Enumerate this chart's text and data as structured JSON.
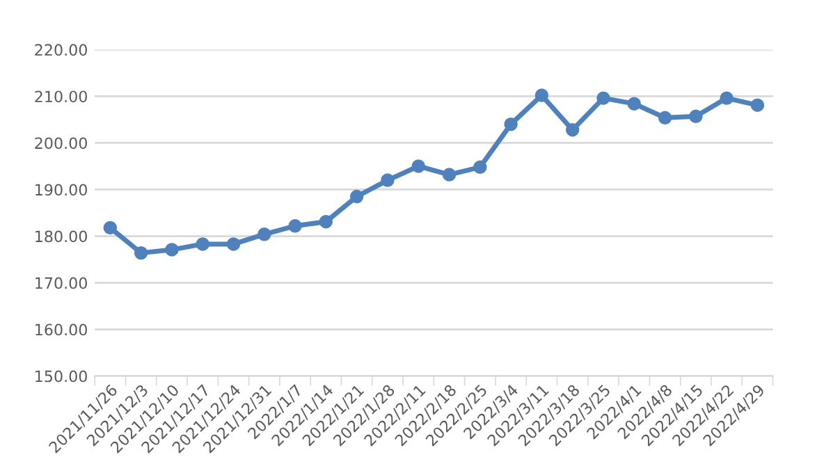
{
  "chart_data": {
    "type": "line",
    "categories": [
      "2021/11/26",
      "2021/12/3",
      "2021/12/10",
      "2021/12/17",
      "2021/12/24",
      "2021/12/31",
      "2022/1/7",
      "2022/1/14",
      "2022/1/21",
      "2022/1/28",
      "2022/2/11",
      "2022/2/18",
      "2022/2/25",
      "2022/3/4",
      "2022/3/11",
      "2022/3/18",
      "2022/3/25",
      "2022/4/1",
      "2022/4/8",
      "2022/4/15",
      "2022/4/22",
      "2022/4/29"
    ],
    "series": [
      {
        "color": "#4f81bd",
        "values": [
          181.8,
          176.4,
          177.1,
          178.3,
          178.3,
          180.4,
          182.2,
          183.1,
          188.5,
          192.0,
          195.0,
          193.2,
          194.8,
          204.0,
          210.2,
          202.8,
          209.6,
          208.4,
          205.4,
          205.7,
          209.6,
          208.1
        ]
      }
    ],
    "ylim": [
      150,
      220
    ],
    "yticks": [
      {
        "value": 150,
        "label": "150.00"
      },
      {
        "value": 160,
        "label": "160.00"
      },
      {
        "value": 170,
        "label": "170.00"
      },
      {
        "value": 180,
        "label": "180.00"
      },
      {
        "value": 190,
        "label": "190.00"
      },
      {
        "value": 200,
        "label": "200.00"
      },
      {
        "value": 210,
        "label": "210.00"
      },
      {
        "value": 220,
        "label": "220.00"
      }
    ],
    "grid": "y",
    "marker": "circle",
    "line_style": "solid",
    "legend": false
  }
}
